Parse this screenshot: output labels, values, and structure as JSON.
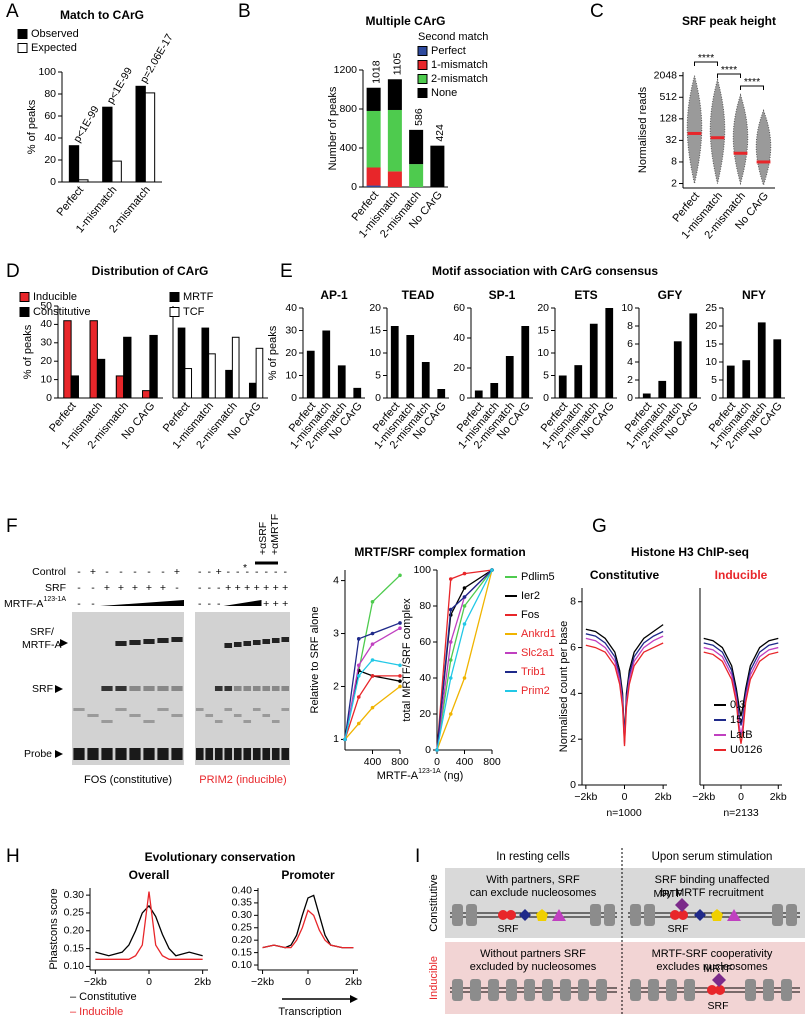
{
  "panels": [
    "A",
    "B",
    "C",
    "D",
    "E",
    "F",
    "G",
    "H",
    "I"
  ],
  "figure_titles": {
    "D": "Distribution of CArG",
    "E": "Motif association with CArG consensus",
    "F": "MRTF/SRF complex formation",
    "G": "Histone H3 ChIP-seq",
    "H": "Evolutionary conservation"
  },
  "chart_data": [
    {
      "type": "bar",
      "title": "Match to CArG",
      "categories": [
        "Perfect",
        "1-mismatch",
        "2-mismatch"
      ],
      "series": [
        {
          "name": "Observed",
          "color": "#000000",
          "values": [
            33,
            68,
            87
          ]
        },
        {
          "name": "Expected",
          "color": "#ffffff",
          "values": [
            2,
            19,
            81
          ]
        }
      ],
      "annotations": [
        "p<1E-99",
        "p<1E-99",
        "p=2.06E-17"
      ],
      "ylabel": "% of peaks",
      "ylim": [
        0,
        100
      ],
      "yticks": [
        0,
        20,
        40,
        60,
        80,
        100
      ]
    },
    {
      "type": "stacked_bar",
      "title": "Multiple CArG",
      "legend_title": "Second match",
      "categories": [
        "Perfect",
        "1-mismatch",
        "2-mismatch",
        "No CArG"
      ],
      "series": [
        {
          "name": "Perfect",
          "color": "#2e4a9e",
          "values": [
            15,
            0,
            0,
            0
          ]
        },
        {
          "name": "1-mismatch",
          "color": "#e8262a",
          "values": [
            185,
            160,
            0,
            0
          ]
        },
        {
          "name": "2-mismatch",
          "color": "#4ecb4e",
          "values": [
            580,
            630,
            235,
            0
          ]
        },
        {
          "name": "None",
          "color": "#000000",
          "values": [
            238,
            315,
            351,
            424
          ]
        }
      ],
      "totals": [
        1018,
        1105,
        586,
        424
      ],
      "ylabel": "Number of peaks",
      "ylim": [
        0,
        1200
      ],
      "yticks": [
        0,
        400,
        800,
        1200
      ]
    },
    {
      "type": "swarm",
      "title": "SRF peak height",
      "categories": [
        "Perfect",
        "1-mismatch",
        "2-mismatch",
        "No CArG"
      ],
      "ranges": [
        [
          2,
          2048
        ],
        [
          2,
          1600
        ],
        [
          2,
          600
        ],
        [
          1.8,
          220
        ]
      ],
      "medians": [
        50,
        38,
        14,
        8
      ],
      "median_color": "#e8262a",
      "significance": [
        "****",
        "****",
        "****"
      ],
      "ylabel": "Normalised reads",
      "log_base": 2,
      "ylim": [
        1.5,
        2600
      ],
      "yticks": [
        2,
        8,
        32,
        128,
        512,
        2048
      ]
    },
    {
      "type": "bar",
      "categories": [
        "Perfect",
        "1-mismatch",
        "2-mismatch",
        "No CArG"
      ],
      "series": [
        {
          "name": "Inducible",
          "color": "#e8262a",
          "values": [
            42,
            42,
            12,
            4
          ]
        },
        {
          "name": "Constitutive",
          "color": "#000000",
          "values": [
            12,
            21,
            33,
            34
          ]
        }
      ],
      "ylabel": "% of peaks",
      "ylim": [
        0,
        50
      ],
      "yticks": [
        0,
        10,
        20,
        30,
        40,
        50
      ]
    },
    {
      "type": "bar",
      "categories": [
        "Perfect",
        "1-mismatch",
        "2-mismatch",
        "No CArG"
      ],
      "series": [
        {
          "name": "MRTF",
          "color": "#000000",
          "values": [
            38,
            38,
            15,
            8
          ]
        },
        {
          "name": "TCF",
          "color": "#ffffff",
          "values": [
            16,
            24,
            33,
            27
          ]
        }
      ],
      "ylim": [
        0,
        50
      ]
    },
    {
      "type": "bar",
      "title": "AP-1",
      "categories": [
        "Perfect",
        "1-mismatch",
        "2-mismatch",
        "No CArG"
      ],
      "values": [
        21,
        30,
        14.5,
        4.5
      ],
      "color": "#000000",
      "ylabel": "% of peaks",
      "ylim": [
        0,
        40
      ],
      "yticks": [
        0,
        10,
        20,
        30,
        40
      ]
    },
    {
      "type": "bar",
      "title": "TEAD",
      "categories": [
        "Perfect",
        "1-mismatch",
        "2-mismatch",
        "No CArG"
      ],
      "values": [
        16,
        14,
        8,
        2
      ],
      "color": "#000000",
      "ylim": [
        0,
        20
      ],
      "yticks": [
        0,
        5,
        10,
        15,
        20
      ]
    },
    {
      "type": "bar",
      "title": "SP-1",
      "categories": [
        "Perfect",
        "1-mismatch",
        "2-mismatch",
        "No CArG"
      ],
      "values": [
        5,
        10,
        28,
        48
      ],
      "color": "#000000",
      "ylim": [
        0,
        60
      ],
      "yticks": [
        0,
        20,
        40,
        60
      ]
    },
    {
      "type": "bar",
      "title": "ETS",
      "categories": [
        "Perfect",
        "1-mismatch",
        "2-mismatch",
        "No CArG"
      ],
      "values": [
        5,
        7.3,
        16.5,
        20
      ],
      "color": "#000000",
      "ylim": [
        0,
        20
      ],
      "yticks": [
        0,
        5,
        10,
        15,
        20
      ]
    },
    {
      "type": "bar",
      "title": "GFY",
      "categories": [
        "Perfect",
        "1-mismatch",
        "2-mismatch",
        "No CArG"
      ],
      "values": [
        0.5,
        1.9,
        6.3,
        9.4
      ],
      "color": "#000000",
      "ylim": [
        0,
        10
      ],
      "yticks": [
        0,
        2,
        4,
        6,
        8,
        10
      ]
    },
    {
      "type": "bar",
      "title": "NFY",
      "categories": [
        "Perfect",
        "1-mismatch",
        "2-mismatch",
        "No CArG"
      ],
      "values": [
        9,
        10.5,
        21,
        16.3
      ],
      "color": "#000000",
      "ylim": [
        0,
        25
      ],
      "yticks": [
        0,
        5,
        10,
        15,
        20,
        25
      ]
    },
    {
      "type": "line",
      "markers": true,
      "x": [
        0,
        200,
        400,
        800
      ],
      "series": [
        {
          "color": "#4ecb4e",
          "values": [
            1,
            2.3,
            3.6,
            4.1
          ]
        },
        {
          "color": "#000000",
          "values": [
            1,
            2.3,
            2.2,
            2.1
          ]
        },
        {
          "color": "#e8262a",
          "values": [
            1,
            1.8,
            2.2,
            2.2
          ]
        },
        {
          "color": "#f0b400",
          "values": [
            1,
            1.3,
            1.6,
            2.0
          ]
        },
        {
          "color": "#c040c0",
          "values": [
            1,
            2.4,
            2.8,
            3.1
          ]
        },
        {
          "color": "#1f2a8a",
          "values": [
            1,
            2.9,
            3.0,
            3.2
          ]
        },
        {
          "color": "#22c8e6",
          "values": [
            1,
            2.2,
            2.5,
            2.4
          ]
        }
      ],
      "ylabel": "Relative to SRF alone",
      "xlim": [
        0,
        800
      ],
      "xticks": [
        400,
        800
      ],
      "ylim": [
        0.8,
        4.2
      ],
      "yticks": [
        1,
        2,
        3,
        4
      ],
      "xlabel": "MRTF-A",
      "xlabel_sup": "123-1A",
      "xlabel_unit": "(ng)"
    },
    {
      "type": "line",
      "markers": true,
      "x": [
        0,
        200,
        400,
        800
      ],
      "series": [
        {
          "name": "Pdlim5",
          "color": "#4ecb4e",
          "label_color": "#000000",
          "values": [
            0,
            50,
            80,
            100
          ]
        },
        {
          "name": "Ier2",
          "color": "#000000",
          "label_color": "#000000",
          "values": [
            0,
            75,
            90,
            100
          ]
        },
        {
          "name": "Fos",
          "color": "#e8262a",
          "label_color": "#000000",
          "values": [
            0,
            95,
            98,
            100
          ]
        },
        {
          "name": "Ankrd1",
          "color": "#f0b400",
          "label_color": "#e8262a",
          "values": [
            0,
            20,
            40,
            100
          ]
        },
        {
          "name": "Slc2a1",
          "color": "#c040c0",
          "label_color": "#e8262a",
          "values": [
            0,
            60,
            85,
            100
          ]
        },
        {
          "name": "Trib1",
          "color": "#1f2a8a",
          "label_color": "#e8262a",
          "values": [
            0,
            78,
            85,
            100
          ]
        },
        {
          "name": "Prim2",
          "color": "#22c8e6",
          "label_color": "#e8262a",
          "values": [
            0,
            40,
            70,
            100
          ]
        }
      ],
      "ylabel": "total MRTF/SRF complex",
      "xlim": [
        0,
        800
      ],
      "xticks": [
        0,
        400,
        800
      ],
      "ylim": [
        0,
        100
      ],
      "yticks": [
        0,
        20,
        40,
        60,
        80,
        100
      ]
    },
    {
      "type": "line",
      "title": "Constitutive",
      "title_color": "#000000",
      "note": "n=1000",
      "x": [
        -2,
        -1.5,
        -1,
        -0.5,
        -0.25,
        -0.1,
        0,
        0.1,
        0.25,
        0.5,
        1,
        1.5,
        2
      ],
      "series": [
        {
          "color": "#000000",
          "values": [
            6.8,
            6.7,
            6.4,
            5.8,
            5.0,
            4.0,
            2.0,
            4.0,
            5.0,
            5.8,
            6.4,
            6.7,
            7.0
          ]
        },
        {
          "color": "#1f2a8a",
          "values": [
            6.6,
            6.5,
            6.2,
            5.6,
            4.8,
            3.8,
            1.9,
            3.8,
            4.8,
            5.6,
            6.2,
            6.5,
            6.7
          ]
        },
        {
          "color": "#c040c0",
          "values": [
            6.4,
            6.3,
            6.0,
            5.4,
            4.6,
            3.6,
            1.8,
            3.6,
            4.6,
            5.4,
            6.0,
            6.3,
            6.5
          ]
        },
        {
          "color": "#e8262a",
          "values": [
            6.1,
            6.0,
            5.8,
            5.2,
            4.4,
            3.4,
            1.7,
            3.4,
            4.4,
            5.2,
            5.8,
            6.0,
            6.2
          ]
        }
      ],
      "ylabel": "Normalised count per base",
      "xlim": [
        -2.2,
        2.2
      ],
      "xticks": [
        {
          "value": -2,
          "label": "−2kb"
        },
        0,
        {
          "value": 2,
          "label": "2kb"
        }
      ],
      "ylim": [
        0,
        8.6
      ],
      "yticks": [
        0,
        2,
        4,
        6,
        8
      ]
    },
    {
      "type": "line",
      "title": "Inducible",
      "title_color": "#e8262a",
      "note": "n=2133",
      "x": [
        -2,
        -1.5,
        -1,
        -0.5,
        -0.25,
        -0.1,
        0,
        0.1,
        0.25,
        0.5,
        1,
        1.5,
        2
      ],
      "series": [
        {
          "name": "0.3",
          "color": "#000000",
          "values": [
            6.4,
            6.3,
            6.0,
            5.2,
            4.2,
            3.4,
            3.0,
            3.4,
            4.2,
            5.2,
            6.0,
            6.3,
            6.4
          ]
        },
        {
          "name": "15",
          "color": "#1f2a8a",
          "values": [
            6.2,
            6.1,
            5.8,
            5.0,
            4.0,
            3.0,
            2.6,
            3.0,
            4.0,
            5.0,
            5.8,
            6.1,
            6.2
          ]
        },
        {
          "name": "LatB",
          "color": "#c040c0",
          "values": [
            6.0,
            5.9,
            5.6,
            4.8,
            3.8,
            2.6,
            2.2,
            2.6,
            3.8,
            4.8,
            5.6,
            5.9,
            6.0
          ]
        },
        {
          "name": "U0126",
          "color": "#e8262a",
          "values": [
            5.8,
            5.7,
            5.4,
            4.6,
            3.6,
            2.3,
            1.8,
            2.3,
            3.6,
            4.6,
            5.4,
            5.7,
            5.8
          ]
        }
      ],
      "xlim": [
        -2.2,
        2.2
      ],
      "xticks": [
        {
          "value": -2,
          "label": "−2kb"
        },
        0,
        {
          "value": 2,
          "label": "2kb"
        }
      ],
      "ylim": [
        0,
        8.6
      ]
    },
    {
      "type": "line",
      "title": "Overall",
      "x": [
        -2,
        -1.5,
        -1,
        -0.75,
        -0.5,
        -0.25,
        0,
        0.25,
        0.5,
        0.75,
        1,
        1.5,
        2
      ],
      "series": [
        {
          "name": "– Constitutive",
          "color": "#000000",
          "label_color": "#000000",
          "values": [
            0.14,
            0.13,
            0.14,
            0.16,
            0.2,
            0.25,
            0.27,
            0.24,
            0.19,
            0.15,
            0.13,
            0.14,
            0.13
          ]
        },
        {
          "name": "– Inducible",
          "color": "#e8262a",
          "label_color": "#e8262a",
          "values": [
            0.12,
            0.12,
            0.12,
            0.12,
            0.13,
            0.16,
            0.31,
            0.16,
            0.13,
            0.12,
            0.12,
            0.12,
            0.12
          ]
        }
      ],
      "ylabel": "Phastcons score",
      "xlim": [
        -2.2,
        2.2
      ],
      "xticks": [
        {
          "value": -2,
          "label": "−2kb"
        },
        0,
        {
          "value": 2,
          "label": "2kb"
        }
      ],
      "ylim": [
        0.09,
        0.32
      ],
      "yticks": [
        {
          "value": 0.1,
          "label": "0.10"
        },
        0.15,
        {
          "value": 0.2,
          "label": "0.20"
        },
        0.25,
        {
          "value": 0.3,
          "label": "0.30"
        }
      ]
    },
    {
      "type": "line",
      "title": "Promoter",
      "xlabel": "Transcription",
      "x": [
        -2,
        -1.5,
        -1,
        -0.75,
        -0.5,
        -0.25,
        0,
        0.25,
        0.5,
        0.75,
        1,
        1.5,
        2
      ],
      "series": [
        {
          "color": "#000000",
          "values": [
            0.17,
            0.18,
            0.17,
            0.18,
            0.22,
            0.3,
            0.37,
            0.38,
            0.3,
            0.22,
            0.18,
            0.17,
            0.17
          ]
        },
        {
          "color": "#e8262a",
          "values": [
            0.17,
            0.18,
            0.17,
            0.17,
            0.2,
            0.25,
            0.32,
            0.3,
            0.24,
            0.2,
            0.18,
            0.17,
            0.17
          ]
        }
      ],
      "xlim": [
        -2.2,
        2.2
      ],
      "xticks": [
        {
          "value": -2,
          "label": "−2kb"
        },
        0,
        {
          "value": 2,
          "label": "2kb"
        }
      ],
      "ylim": [
        0.08,
        0.41
      ],
      "yticks": [
        {
          "value": 0.1,
          "label": "0.10"
        },
        0.15,
        {
          "value": 0.2,
          "label": "0.20"
        },
        0.25,
        {
          "value": 0.3,
          "label": "0.30"
        },
        0.35,
        {
          "value": 0.4,
          "label": "0.40"
        }
      ]
    }
  ],
  "gel": {
    "row_labels": [
      "Control",
      "SRF",
      "MRTF-A"
    ],
    "mrtf_sup": "123-1A",
    "antibodies": [
      "+αSRF",
      "+αMRTF"
    ],
    "star": "*",
    "left": {
      "control": [
        "-",
        "+",
        "-",
        "-",
        "-",
        "-",
        "-",
        "+"
      ],
      "srf": [
        "-",
        "-",
        "+",
        "+",
        "+",
        "+",
        "+",
        "-"
      ],
      "mrtf": [
        "-",
        "-"
      ]
    },
    "right": {
      "control": [
        "-",
        "-",
        "+",
        "-",
        "-",
        "-",
        "-",
        "-",
        "-",
        "-"
      ],
      "srf": [
        "-",
        "-",
        "-",
        "+",
        "+",
        "+",
        "+",
        "+",
        "+",
        "+"
      ],
      "mrtf": [
        "-",
        "-",
        "-"
      ],
      "mrtf_end": [
        "+",
        "+",
        "+"
      ]
    },
    "band_labels": [
      "SRF/",
      "MRTF-A",
      "SRF",
      "Probe"
    ],
    "captions": [
      "FOS (constitutive)",
      "PRIM2 (inducible)"
    ]
  },
  "diagram": {
    "headers": [
      "In resting cells",
      "Upon serum stimulation"
    ],
    "rows": [
      {
        "label": "Constitutive",
        "cells": [
          [
            "With partners, SRF",
            "can exclude nucleosomes"
          ],
          [
            "SRF binding unaffected",
            "by MRTF recruitment"
          ]
        ]
      },
      {
        "label": "Inducible",
        "cells": [
          [
            "Without partners SRF",
            "excluded by nucleosomes"
          ],
          [
            "MRTF-SRF cooperativity",
            "excludes nucleosomes"
          ]
        ]
      }
    ],
    "node_labels": [
      "SRF",
      "MRTF",
      "SRF",
      "MRTF",
      "SRF"
    ]
  }
}
